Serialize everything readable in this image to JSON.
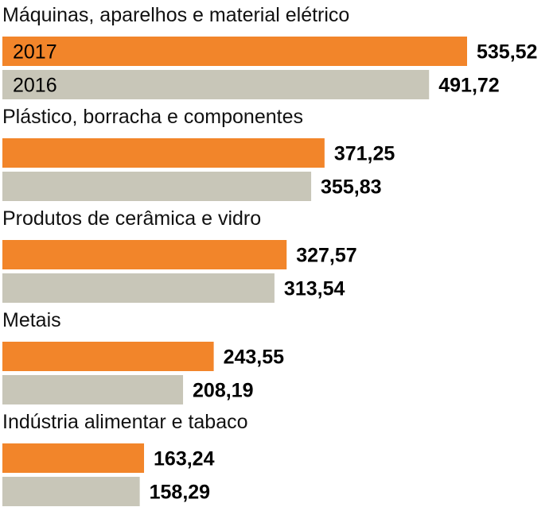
{
  "chart_data": {
    "type": "bar",
    "orientation": "horizontal",
    "categories": [
      "Máquinas, aparelhos e material elétrico",
      "Plástico, borracha e componentes",
      "Produtos de cerâmica e vidro",
      "Metais",
      "Indústria alimentar e tabaco"
    ],
    "series": [
      {
        "name": "2017",
        "color": "#f2852a",
        "values": [
          535.52,
          371.25,
          327.57,
          243.55,
          163.24
        ],
        "value_labels": [
          "535,52",
          "371,25",
          "327,57",
          "243,55",
          "163,24"
        ]
      },
      {
        "name": "2016",
        "color": "#c8c6b8",
        "values": [
          491.72,
          355.83,
          313.54,
          208.19,
          158.29
        ],
        "value_labels": [
          "491,72",
          "355,83",
          "313,54",
          "208,19",
          "158,29"
        ]
      }
    ],
    "legend": "inside-first-bars",
    "xlim": [
      0,
      535.52
    ],
    "grid": false
  }
}
